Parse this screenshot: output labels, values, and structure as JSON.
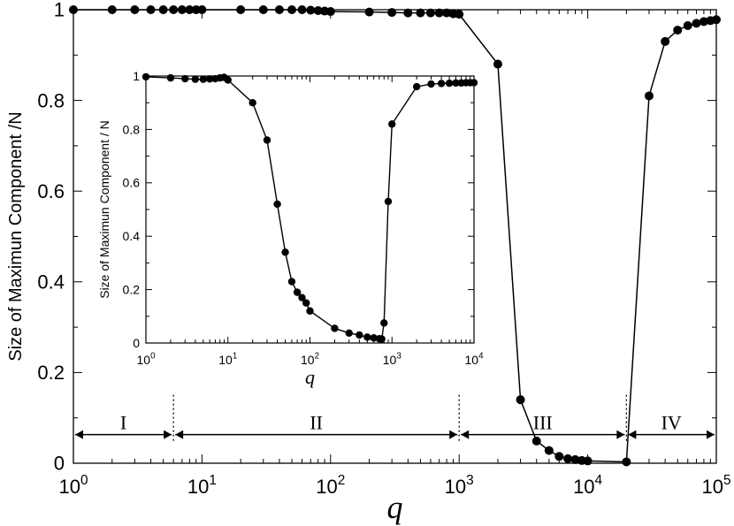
{
  "chart_data": [
    {
      "type": "line",
      "xscale": "log",
      "xlim": [
        1,
        100000
      ],
      "ylim": [
        0,
        1
      ],
      "xlabel": "q",
      "ylabel": "Size of Maximun Component /N",
      "x_ticks": [
        {
          "base": "10",
          "exp": "0"
        },
        {
          "base": "10",
          "exp": "1"
        },
        {
          "base": "10",
          "exp": "2"
        },
        {
          "base": "10",
          "exp": "3"
        },
        {
          "base": "10",
          "exp": "4"
        },
        {
          "base": "10",
          "exp": "5"
        }
      ],
      "y_ticks": [
        "0",
        "0.2",
        "0.4",
        "0.6",
        "0.8",
        "1"
      ],
      "series": [
        {
          "x": [
            1,
            2,
            3,
            4,
            5,
            6,
            7,
            8,
            9,
            10,
            20,
            30,
            40,
            50,
            60,
            70,
            80,
            90,
            100,
            200,
            300,
            400,
            500,
            600,
            700,
            800,
            900,
            1000,
            2000,
            3000,
            4000,
            5000,
            6000,
            7000,
            8000,
            9000,
            10000,
            20000,
            30000,
            40000,
            50000,
            60000,
            70000,
            80000,
            90000,
            100000
          ],
          "y": [
            1.0,
            1.0,
            1.0,
            1.0,
            1.0,
            1.0,
            1.0,
            1.0,
            1.0,
            1.0,
            1.0,
            1.0,
            1.0,
            1.0,
            1.0,
            0.999,
            0.998,
            0.997,
            0.996,
            0.995,
            0.994,
            0.993,
            0.993,
            0.993,
            0.993,
            0.993,
            0.991,
            0.99,
            0.88,
            0.14,
            0.049,
            0.028,
            0.015,
            0.01,
            0.008,
            0.006,
            0.005,
            0.003,
            0.81,
            0.93,
            0.955,
            0.965,
            0.97,
            0.974,
            0.976,
            0.978
          ]
        }
      ],
      "regions": [
        {
          "label": "I",
          "from": 1,
          "to": 6
        },
        {
          "label": "II",
          "from": 6,
          "to": 1000
        },
        {
          "label": "III",
          "from": 1000,
          "to": 20000
        },
        {
          "label": "IV",
          "from": 20000,
          "to": 100000
        }
      ],
      "region_arrow_y": 0.063
    },
    {
      "type": "line",
      "xscale": "log",
      "xlim": [
        1,
        10000
      ],
      "ylim": [
        0,
        1
      ],
      "xlabel": "q",
      "ylabel": "Size of Maximun Component / N",
      "x_ticks": [
        {
          "base": "10",
          "exp": "0"
        },
        {
          "base": "10",
          "exp": "1"
        },
        {
          "base": "10",
          "exp": "2"
        },
        {
          "base": "10",
          "exp": "3"
        },
        {
          "base": "10",
          "exp": "4"
        }
      ],
      "y_ticks": [
        "0",
        "0.2",
        "0.4",
        "0.6",
        "0.8",
        "1"
      ],
      "series": [
        {
          "x": [
            1,
            2,
            3,
            4,
            5,
            6,
            7,
            8,
            9,
            10,
            20,
            30,
            40,
            50,
            60,
            70,
            80,
            90,
            100,
            200,
            300,
            400,
            500,
            600,
            700,
            750,
            800,
            900,
            1000,
            2000,
            3000,
            4000,
            5000,
            6000,
            7000,
            8000,
            9000,
            10000
          ],
          "y": [
            0.997,
            0.993,
            0.99,
            0.988,
            0.988,
            0.989,
            0.99,
            0.993,
            0.995,
            0.985,
            0.9,
            0.76,
            0.52,
            0.34,
            0.23,
            0.19,
            0.17,
            0.15,
            0.12,
            0.055,
            0.037,
            0.03,
            0.022,
            0.019,
            0.016,
            0.015,
            0.075,
            0.53,
            0.82,
            0.96,
            0.97,
            0.972,
            0.973,
            0.974,
            0.974,
            0.975,
            0.975,
            0.975
          ]
        }
      ]
    }
  ]
}
